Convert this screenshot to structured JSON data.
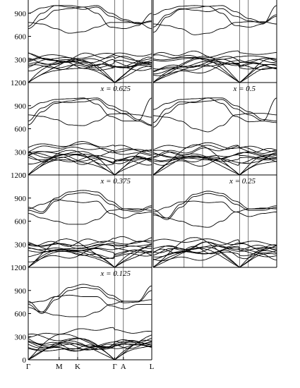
{
  "chart_data": {
    "type": "line",
    "ylim": [
      0,
      1200
    ],
    "y_ticks": [
      "0",
      "300",
      "600",
      "900",
      "1200"
    ],
    "k_points": [
      "Γ",
      "M",
      "K",
      "Γ",
      "A",
      "L"
    ],
    "k_positions": [
      0,
      0.25,
      0.4,
      0.7,
      0.77,
      1.0
    ],
    "panels": [
      {
        "label": "",
        "row": 0,
        "col": 0,
        "show_y_axis": true,
        "show_x_labels": false,
        "seed": 11,
        "top_bands": [
          {
            "values": [
              700,
              820,
              940,
              960,
              980,
              1000,
              900,
              820,
              770,
              800
            ]
          },
          {
            "values": [
              730,
              900,
              1000,
              980,
              950,
              980,
              860,
              800,
              760,
              790
            ]
          },
          {
            "values": [
              780,
              760,
              700,
              640,
              660,
              720,
              780,
              780,
              780,
              700
            ]
          },
          {
            "values": [
              900,
              970,
              1000,
              1000,
              980,
              900,
              720,
              700,
              740,
              900
            ]
          }
        ]
      },
      {
        "label": "",
        "row": 0,
        "col": 1,
        "show_y_axis": false,
        "show_x_labels": false,
        "seed": 23,
        "top_bands": [
          {
            "values": [
              650,
              850,
              950,
              970,
              990,
              1000,
              920,
              830,
              780,
              880
            ]
          },
          {
            "values": [
              720,
              880,
              960,
              940,
              920,
              960,
              860,
              800,
              770,
              860
            ]
          },
          {
            "values": [
              760,
              740,
              700,
              620,
              640,
              700,
              780,
              790,
              790,
              760
            ]
          },
          {
            "values": [
              880,
              950,
              990,
              1000,
              990,
              900,
              740,
              720,
              760,
              1000
            ]
          }
        ]
      },
      {
        "label": "x = 0.625",
        "row": 1,
        "col": 0,
        "show_y_axis": true,
        "show_x_labels": false,
        "seed": 37,
        "top_bands": [
          {
            "values": [
              650,
              820,
              930,
              960,
              990,
              1000,
              900,
              830,
              720,
              650
            ]
          },
          {
            "values": [
              700,
              870,
              950,
              940,
              950,
              980,
              860,
              790,
              700,
              640
            ]
          },
          {
            "values": [
              780,
              760,
              720,
              650,
              640,
              700,
              790,
              800,
              780,
              750
            ]
          },
          {
            "values": [
              860,
              940,
              980,
              990,
              1000,
              920,
              760,
              700,
              700,
              1000
            ]
          }
        ]
      },
      {
        "label": "x = 0.5",
        "row": 1,
        "col": 1,
        "show_y_axis": false,
        "show_x_labels": false,
        "seed": 41,
        "top_bands": [
          {
            "values": [
              620,
              800,
              920,
              950,
              1000,
              1000,
              900,
              820,
              720,
              700
            ]
          },
          {
            "values": [
              680,
              860,
              950,
              940,
              960,
              980,
              860,
              780,
              700,
              680
            ]
          },
          {
            "values": [
              770,
              750,
              700,
              600,
              560,
              640,
              780,
              800,
              800,
              780
            ]
          },
          {
            "values": [
              850,
              930,
              980,
              990,
              1000,
              930,
              760,
              690,
              700,
              1000
            ]
          }
        ]
      },
      {
        "label": "x = 0.375",
        "row": 2,
        "col": 0,
        "show_y_axis": true,
        "show_x_labels": false,
        "seed": 53,
        "top_bands": [
          {
            "values": [
              780,
              720,
              900,
              980,
              1000,
              980,
              860,
              760,
              740,
              800
            ]
          },
          {
            "values": [
              740,
              700,
              860,
              950,
              970,
              940,
              820,
              740,
              720,
              780
            ]
          },
          {
            "values": [
              700,
              640,
              600,
              560,
              560,
              620,
              740,
              760,
              760,
              740
            ]
          },
          {
            "values": [
              760,
              820,
              880,
              860,
              840,
              860,
              700,
              640,
              700,
              720
            ]
          }
        ]
      },
      {
        "label": "x = 0.25",
        "row": 2,
        "col": 1,
        "show_y_axis": false,
        "show_x_labels": false,
        "seed": 67,
        "top_bands": [
          {
            "values": [
              750,
              640,
              820,
              950,
              990,
              960,
              860,
              760,
              760,
              800
            ]
          },
          {
            "values": [
              700,
              620,
              780,
              920,
              960,
              930,
              820,
              740,
              740,
              780
            ]
          },
          {
            "values": [
              680,
              640,
              600,
              540,
              520,
              600,
              720,
              760,
              770,
              760
            ]
          },
          {
            "values": [
              720,
              780,
              850,
              860,
              840,
              850,
              720,
              660,
              700,
              720
            ]
          }
        ]
      },
      {
        "label": "x = 0.125",
        "row": 3,
        "col": 0,
        "show_y_axis": true,
        "show_x_labels": true,
        "seed": 79,
        "top_bands": [
          {
            "values": [
              760,
              620,
              820,
              940,
              980,
              950,
              840,
              760,
              760,
              960
            ]
          },
          {
            "values": [
              720,
              600,
              780,
              900,
              940,
              920,
              800,
              740,
              750,
              900
            ]
          },
          {
            "values": [
              680,
              620,
              580,
              560,
              560,
              620,
              720,
              760,
              760,
              780
            ]
          },
          {
            "values": [
              740,
              760,
              820,
              840,
              820,
              820,
              700,
              660,
              720,
              720
            ]
          }
        ]
      }
    ]
  }
}
